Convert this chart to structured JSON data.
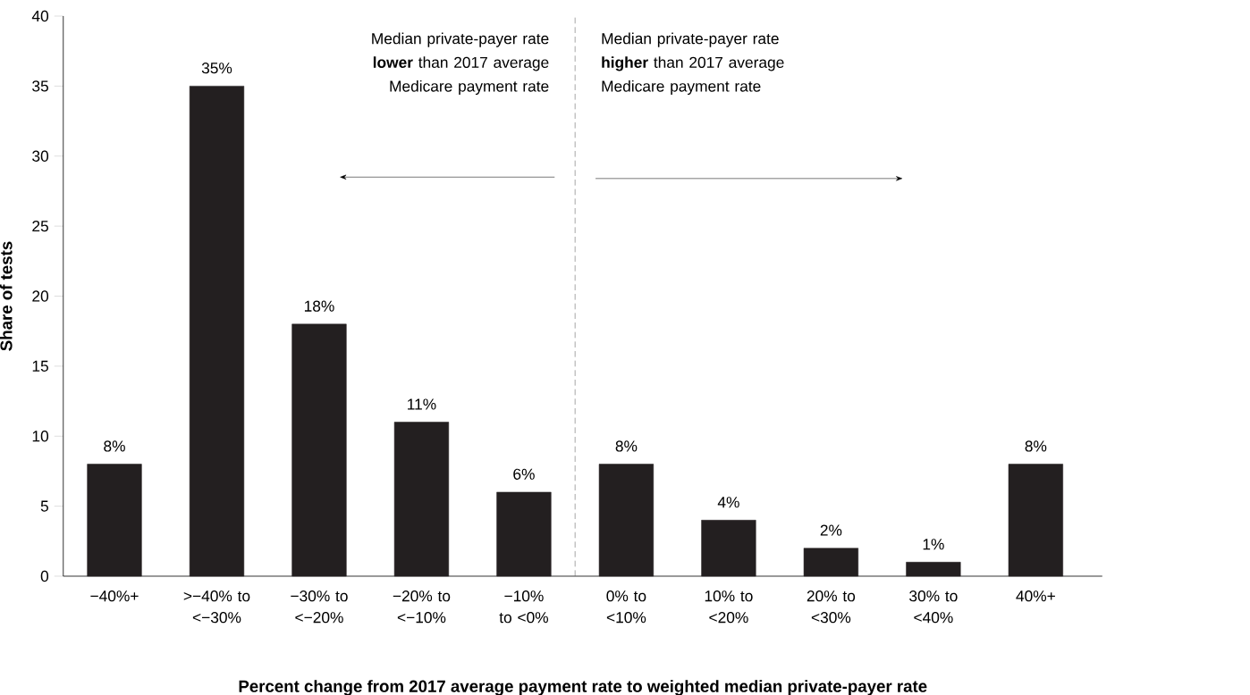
{
  "chart_data": {
    "type": "bar",
    "categories": [
      "−40%+",
      ">−40% to <−30%",
      "−30% to <−20%",
      "−20% to <−10%",
      "−10% to <0%",
      "0% to <10%",
      "10% to <20%",
      "20% to <30%",
      "30% to <40%",
      "40%+"
    ],
    "values": [
      8,
      35,
      18,
      11,
      6,
      8,
      4,
      2,
      1,
      8
    ],
    "value_labels": [
      "8%",
      "35%",
      "18%",
      "11%",
      "6%",
      "8%",
      "4%",
      "2%",
      "1%",
      "8%"
    ],
    "color": "#231f20",
    "ylim": [
      0,
      40
    ],
    "yticks": [
      0,
      5,
      10,
      15,
      20,
      25,
      30,
      35,
      40
    ],
    "xlabel": "Percent change from 2017 average payment rate to weighted median private-payer rate",
    "ylabel": "Share of tests",
    "annotations": [
      "Median private-payer rate **lower** than 2017 average Medicare payment rate",
      "Median private-payer rate **higher** than 2017 average Medicare payment rate"
    ]
  }
}
